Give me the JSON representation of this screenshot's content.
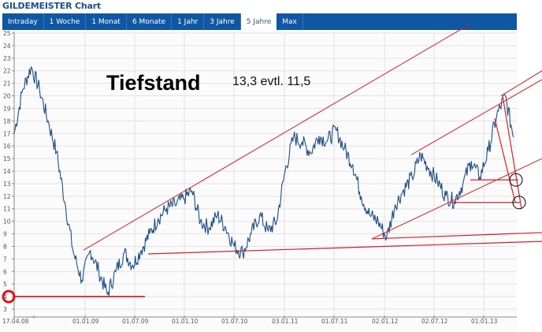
{
  "header": {
    "title": "GILDEMEISTER Chart"
  },
  "tabs": [
    {
      "label": "Intraday",
      "active": false
    },
    {
      "label": "1 Woche",
      "active": false
    },
    {
      "label": "1 Monat",
      "active": false
    },
    {
      "label": "6 Monate",
      "active": false
    },
    {
      "label": "1 Jahr",
      "active": false
    },
    {
      "label": "3 Jahre",
      "active": false
    },
    {
      "label": "5 Jahre",
      "active": true
    },
    {
      "label": "Max",
      "active": false
    }
  ],
  "annotations": {
    "headline": "Tiefstand",
    "note": "13,3  evtl. 11,5"
  },
  "colors": {
    "tabbar": "#0f57a3",
    "price_line": "#1f4e86",
    "trend_lines": "#d0202a",
    "circles_highlight": "#e0101a",
    "circles_target": "#000000"
  },
  "chart_data": {
    "type": "line",
    "title": "GILDEMEISTER Chart",
    "xlabel": "",
    "ylabel": "",
    "ylim": [
      3,
      25
    ],
    "yticks": [
      3,
      4,
      5,
      6,
      7,
      8,
      9,
      10,
      11,
      12,
      13,
      14,
      15,
      16,
      17,
      18,
      19,
      20,
      21,
      22,
      23,
      24,
      25
    ],
    "xticks": [
      "17.04.08",
      "01.01.09",
      "01.07.09",
      "01.01.10",
      "01.07.10",
      "03.01.11",
      "01.07.11",
      "02.01.12",
      "02.07.12",
      "01.01.13"
    ],
    "grid": true,
    "series": [
      {
        "name": "GILDEMEISTER",
        "x": [
          "17.04.08",
          "05.08",
          "06.08",
          "07.08",
          "08.08",
          "09.08",
          "10.08",
          "11.08",
          "12.08",
          "01.01.09",
          "02.09",
          "03.09",
          "04.09",
          "05.09",
          "06.09",
          "01.07.09",
          "08.09",
          "09.09",
          "10.09",
          "11.09",
          "12.09",
          "01.01.10",
          "02.10",
          "03.10",
          "04.10",
          "05.10",
          "06.10",
          "01.07.10",
          "08.10",
          "09.10",
          "10.10",
          "11.10",
          "12.10",
          "03.01.11",
          "02.11",
          "03.11",
          "04.11",
          "05.11",
          "06.11",
          "01.07.11",
          "08.11",
          "09.11",
          "10.11",
          "11.11",
          "12.11",
          "02.01.12",
          "02.12",
          "03.12",
          "04.12",
          "05.12",
          "06.12",
          "02.07.12",
          "08.12",
          "09.12",
          "10.12",
          "11.12",
          "12.12",
          "01.01.13",
          "02.13",
          "03.13"
        ],
        "values": [
          17.0,
          20.5,
          22.3,
          20.5,
          18.0,
          15.5,
          11.5,
          7.5,
          5.3,
          7.7,
          6.0,
          4.2,
          6.0,
          7.5,
          6.5,
          7.7,
          9.0,
          10.2,
          11.0,
          11.3,
          11.8,
          12.4,
          10.0,
          9.5,
          10.5,
          9.5,
          8.0,
          7.5,
          9.0,
          10.5,
          9.2,
          10.0,
          14.0,
          16.7,
          16.3,
          15.5,
          16.8,
          16.4,
          17.3,
          15.8,
          14.5,
          12.0,
          10.5,
          10.0,
          8.7,
          11.3,
          12.5,
          13.5,
          15.3,
          14.2,
          13.2,
          12.0,
          11.6,
          13.0,
          14.8,
          13.5,
          15.6,
          18.4,
          20.0,
          16.7
        ]
      }
    ],
    "annotations": [
      {
        "type": "text",
        "text": "Tiefstand"
      },
      {
        "type": "text",
        "text": "13,3  evtl. 11,5"
      },
      {
        "type": "hline",
        "y": 4.0,
        "x_range": [
          "17.04.08",
          "01.07.09"
        ]
      },
      {
        "type": "hline",
        "y": 7.4,
        "x_range": [
          "10.09",
          "end"
        ]
      },
      {
        "type": "hline",
        "y": 8.6,
        "x_range": [
          "12.11",
          "end"
        ]
      },
      {
        "type": "hline",
        "y": 13.3,
        "x_range": [
          "09.12",
          "03.13"
        ]
      },
      {
        "type": "hline",
        "y": 11.5,
        "x_range": [
          "06.12",
          "03.13"
        ]
      },
      {
        "type": "trendline",
        "from": [
          "12.08",
          7.7
        ],
        "to": [
          "end",
          25.5
        ]
      },
      {
        "type": "trendline",
        "from": [
          "12.11",
          8.6
        ],
        "to": [
          "end",
          13.0
        ]
      },
      {
        "type": "trendline",
        "from": [
          "05.12",
          15.3
        ],
        "to": [
          "end",
          20.0
        ]
      },
      {
        "type": "circle",
        "y": 4.0,
        "note": "red circle at y-axis"
      },
      {
        "type": "circle",
        "y": 13.3,
        "note": "target 1"
      },
      {
        "type": "circle",
        "y": 11.5,
        "note": "target 2"
      }
    ]
  }
}
